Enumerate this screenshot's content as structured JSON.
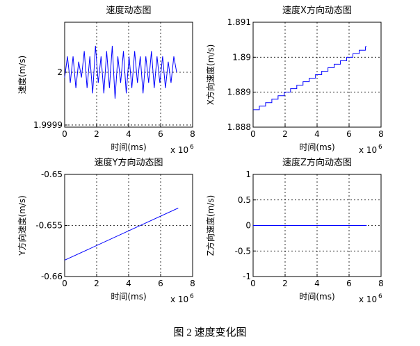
{
  "chart_data": [
    {
      "type": "line",
      "title": "速度动态图",
      "xlabel": "时间(ms)",
      "ylabel": "速度(m/s)",
      "x_multiplier": "x 10",
      "x_exponent": "6",
      "color": "#0000ff",
      "grid": true,
      "xlim": [
        0,
        8
      ],
      "xticks": [
        0,
        2,
        4,
        6,
        8
      ],
      "ylim": [
        1.999896,
        2.0000947
      ],
      "yticks": [
        1.9999,
        2
      ],
      "x": [
        0,
        0.175,
        0.35,
        0.525,
        0.7,
        0.875,
        1.05,
        1.225,
        1.4,
        1.575,
        1.75,
        1.925,
        2.1,
        2.275,
        2.45,
        2.625,
        2.8,
        2.975,
        3.15,
        3.325,
        3.5,
        3.675,
        3.85,
        4.025,
        4.2,
        4.375,
        4.55,
        4.725,
        4.9,
        5.075,
        5.25,
        5.425,
        5.6,
        5.775,
        5.95,
        6.125,
        6.3,
        6.475,
        6.65,
        6.825,
        7
      ],
      "values": [
        1.99999,
        2.00003,
        1.99998,
        2.00003,
        1.99997,
        2.00002,
        1.99999,
        2.00004,
        1.99997,
        2.00003,
        1.99996,
        2.00005,
        1.99998,
        2.00003,
        1.99996,
        2.00004,
        1.99997,
        2.00005,
        1.99995,
        2.00003,
        1.99998,
        2.00004,
        1.99996,
        2.00003,
        1.99997,
        2.00004,
        1.99998,
        2.00003,
        1.99996,
        2.00003,
        1.99998,
        2.00004,
        1.99997,
        2.00003,
        1.99998,
        2.00003,
        1.99997,
        2.00002,
        1.99998,
        2.00003,
        2
      ]
    },
    {
      "type": "line",
      "title": "速度X方向动态图",
      "xlabel": "时间(ms)",
      "ylabel": "X方向速度(m/s)",
      "x_multiplier": "x 10",
      "x_exponent": "6",
      "color": "#0000ff",
      "grid": true,
      "xlim": [
        0,
        8
      ],
      "xticks": [
        0,
        2,
        4,
        6,
        8
      ],
      "ylim": [
        1.888,
        1.891
      ],
      "yticks": [
        1.888,
        1.889,
        1.89,
        1.891
      ],
      "x": [
        0,
        0.39,
        0.39,
        0.78,
        0.78,
        1.17,
        1.17,
        1.56,
        1.56,
        1.95,
        1.95,
        2.34,
        2.34,
        2.73,
        2.73,
        3.12,
        3.12,
        3.51,
        3.51,
        3.9,
        3.9,
        4.29,
        4.29,
        4.68,
        4.68,
        5.07,
        5.07,
        5.46,
        5.46,
        5.85,
        5.85,
        6.24,
        6.24,
        6.63,
        6.63,
        7.02,
        7.02,
        7.1
      ],
      "values": [
        1.8885,
        1.8885,
        1.8886,
        1.8886,
        1.8887,
        1.8887,
        1.8888,
        1.8888,
        1.8889,
        1.8889,
        1.889,
        1.889,
        1.8891,
        1.8891,
        1.8892,
        1.8892,
        1.8893,
        1.8893,
        1.8894,
        1.8894,
        1.8895,
        1.8895,
        1.8896,
        1.8896,
        1.8897,
        1.8897,
        1.8898,
        1.8898,
        1.8899,
        1.8899,
        1.89,
        1.89,
        1.8901,
        1.8901,
        1.8902,
        1.8902,
        1.8903,
        1.8903
      ]
    },
    {
      "type": "line",
      "title": "速度Y方向动态图",
      "xlabel": "时间(ms)",
      "ylabel": "Y方向速度(m/s)",
      "x_multiplier": "x 10",
      "x_exponent": "6",
      "color": "#0000ff",
      "grid": true,
      "xlim": [
        0,
        8
      ],
      "xticks": [
        0,
        2,
        4,
        6,
        8
      ],
      "ylim": [
        -0.66,
        -0.65
      ],
      "yticks": [
        -0.66,
        -0.655,
        -0.65
      ],
      "x": [
        0,
        7.1
      ],
      "values": [
        -0.6584,
        -0.6533
      ]
    },
    {
      "type": "line",
      "title": "速度Z方向动态图",
      "xlabel": "时间(ms)",
      "ylabel": "Z方向速度(m/s)",
      "x_multiplier": "x 10",
      "x_exponent": "6",
      "color": "#0000ff",
      "grid": true,
      "xlim": [
        0,
        8
      ],
      "xticks": [
        0,
        2,
        4,
        6,
        8
      ],
      "ylim": [
        -1,
        1
      ],
      "yticks": [
        -1,
        -0.5,
        0,
        0.5,
        1
      ],
      "x": [
        0,
        7.1
      ],
      "values": [
        0,
        0
      ]
    }
  ],
  "caption": "图 2  速度变化图"
}
